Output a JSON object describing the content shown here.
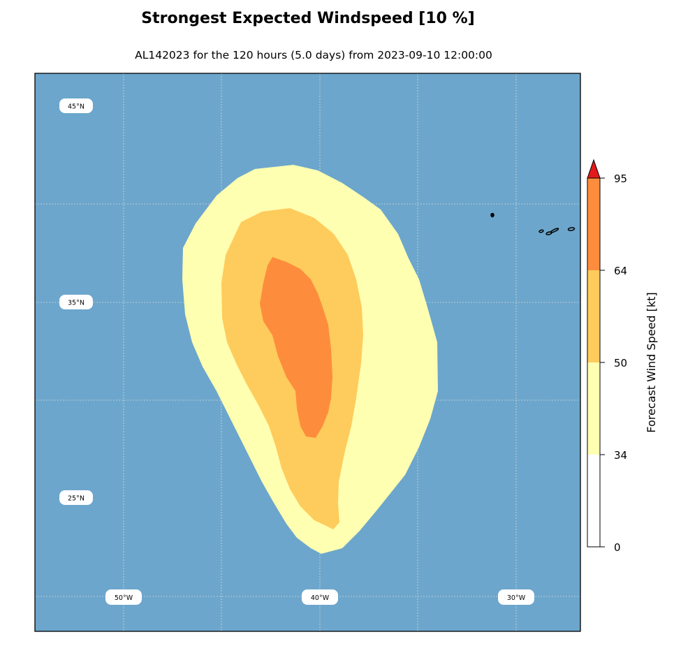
{
  "title": "Strongest Expected Windspeed [10 %]",
  "subtitle": "AL142023 for the 120 hours (5.0 days) from 2023-09-10 12:00:00",
  "map": {
    "ocean_color": "#6ca6cc",
    "lat_labels": [
      "45°N",
      "35°N",
      "25°N"
    ],
    "lon_labels": [
      "50°W",
      "40°W",
      "30°W"
    ]
  },
  "colorbar": {
    "label": "Forecast Wind Speed [kt]",
    "ticks": [
      "0",
      "34",
      "50",
      "64",
      "95"
    ],
    "bands": [
      {
        "from": 0,
        "to": 34,
        "color": "#ffffff"
      },
      {
        "from": 34,
        "to": 50,
        "color": "#ffffb2"
      },
      {
        "from": 50,
        "to": 64,
        "color": "#fecc5c"
      },
      {
        "from": 64,
        "to": 95,
        "color": "#fd8d3c"
      }
    ],
    "extend_color": "#e31a1c"
  },
  "contours": {
    "ts_color": "#ffffb2",
    "stw_color": "#fecc5c",
    "hurricane_color": "#fd8d3c"
  }
}
